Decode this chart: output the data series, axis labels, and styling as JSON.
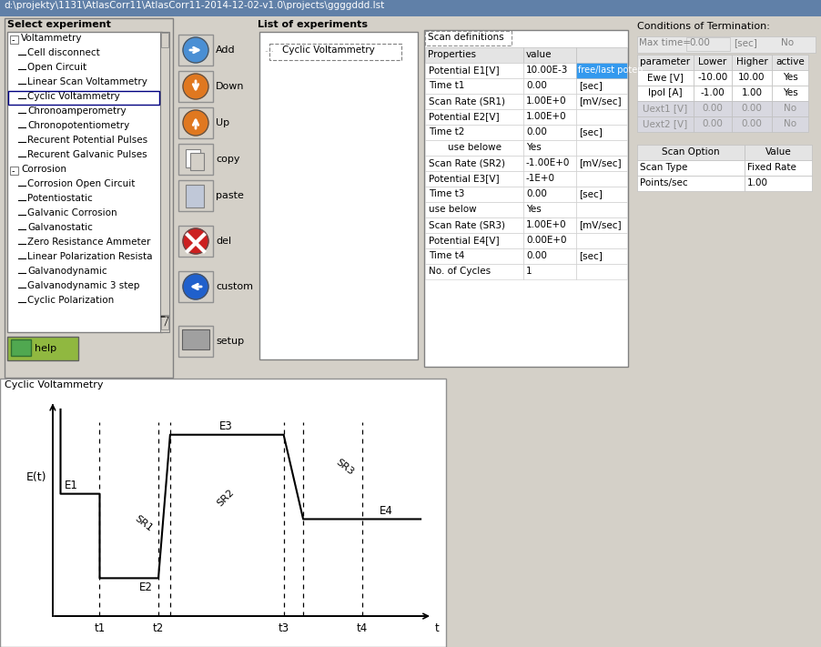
{
  "title_bar": "d:\\projekty\\1131\\AtlasCorr11\\AtlasCorr11-2014-12-02-v1.0\\projects\\ggggddd.lst",
  "bg_color": "#d4d0c8",
  "select_exp_title": "Select experiment",
  "tree_items": [
    {
      "label": "Voltammetry",
      "level": 0,
      "expanded": true
    },
    {
      "label": "Cell disconnect",
      "level": 1
    },
    {
      "label": "Open Circuit",
      "level": 1
    },
    {
      "label": "Linear Scan Voltammetry",
      "level": 1
    },
    {
      "label": "Cyclic Voltammetry",
      "level": 1,
      "selected": true
    },
    {
      "label": "Chronoamperometry",
      "level": 1
    },
    {
      "label": "Chronopotentiometry",
      "level": 1
    },
    {
      "label": "Recurent Potential Pulses",
      "level": 1
    },
    {
      "label": "Recurent Galvanic Pulses",
      "level": 1
    },
    {
      "label": "Corrosion",
      "level": 0,
      "expanded": true
    },
    {
      "label": "Corrosion Open Circuit",
      "level": 1
    },
    {
      "label": "Potentiostatic",
      "level": 1
    },
    {
      "label": "Galvanic Corrosion",
      "level": 1
    },
    {
      "label": "Galvanostatic",
      "level": 1
    },
    {
      "label": "Zero Resistance Ammeter",
      "level": 1
    },
    {
      "label": "Linear Polarization Resista",
      "level": 1
    },
    {
      "label": "Galvanodynamic",
      "level": 1
    },
    {
      "label": "Galvanodynamic 3 step",
      "level": 1
    },
    {
      "label": "Cyclic Polarization",
      "level": 1
    }
  ],
  "list_exp_title": "List of experiments",
  "list_exp_item": "Cyclic Voltammetry",
  "scan_def_title": "Scan definitions",
  "scan_properties": [
    {
      "prop": "Properties",
      "val": "value",
      "unit": "",
      "header": true
    },
    {
      "prop": "Potential E1[V]",
      "val": "10.00E-3",
      "unit": "free/last poten",
      "highlight": true
    },
    {
      "prop": "Time t1",
      "val": "0.00",
      "unit": "[sec]"
    },
    {
      "prop": "Scan Rate (SR1)",
      "val": "1.00E+0",
      "unit": "[mV/sec]"
    },
    {
      "prop": "Potential E2[V]",
      "val": "1.00E+0",
      "unit": ""
    },
    {
      "prop": "Time t2",
      "val": "0.00",
      "unit": "[sec]"
    },
    {
      "prop": "use belowe",
      "val": "Yes",
      "unit": "",
      "indent": true
    },
    {
      "prop": "Scan Rate (SR2)",
      "val": "-1.00E+0",
      "unit": "[mV/sec]"
    },
    {
      "prop": "Potential E3[V]",
      "val": "-1E+0",
      "unit": ""
    },
    {
      "prop": "Time t3",
      "val": "0.00",
      "unit": "[sec]"
    },
    {
      "prop": "use below",
      "val": "Yes",
      "unit": ""
    },
    {
      "prop": "Scan Rate (SR3)",
      "val": "1.00E+0",
      "unit": "[mV/sec]"
    },
    {
      "prop": "Potential E4[V]",
      "val": "0.00E+0",
      "unit": ""
    },
    {
      "prop": "Time t4",
      "val": "0.00",
      "unit": "[sec]"
    },
    {
      "prop": "No. of Cycles",
      "val": "1",
      "unit": ""
    }
  ],
  "conditions_title": "Conditions of Termination:",
  "max_time_label": "Max time=",
  "max_time_val": "0.00",
  "max_time_unit": "[sec]",
  "max_time_active": "No",
  "param_headers": [
    "parameter",
    "Lower",
    "Higher",
    "active"
  ],
  "param_rows": [
    [
      "Ewe [V]",
      "-10.00",
      "10.00",
      "Yes"
    ],
    [
      "Ipol [A]",
      "-1.00",
      "1.00",
      "Yes"
    ],
    [
      "Uext1 [V]",
      "0.00",
      "0.00",
      "No"
    ],
    [
      "Uext2 [V]",
      "0.00",
      "0.00",
      "No"
    ]
  ],
  "scan_option_headers": [
    "Scan Option",
    "Value"
  ],
  "scan_option_rows": [
    [
      "Scan Type",
      "Fixed Rate"
    ],
    [
      "Points/sec",
      "1.00"
    ]
  ],
  "bottom_title": "Cyclic Voltammetry",
  "waveform": {
    "ylabel": "E(t)",
    "xlabel": "t",
    "E1": "E1",
    "E2": "E2",
    "E3": "E3",
    "E4": "E4",
    "SR1": "SR1",
    "SR2": "SR2",
    "SR3": "SR3",
    "t1": "t1",
    "t2": "t2",
    "t3": "t3",
    "t4": "t4",
    "t0x": 0.5,
    "t1x": 1.5,
    "t2x": 3.0,
    "t2bx": 3.3,
    "t3x": 6.2,
    "t3bx": 6.7,
    "t4x": 8.2,
    "t4bx": 8.5,
    "tendx": 9.7,
    "E1y": 3.2,
    "E2y": 1.2,
    "E3y": 4.6,
    "E4y": 2.6
  },
  "help_label": "help",
  "setup_label": "setup",
  "button_y": [
    38,
    78,
    118,
    158,
    198,
    248,
    298
  ],
  "button_labels": [
    "Add",
    "Down",
    "Up",
    "copy",
    "paste",
    "del",
    "custom"
  ],
  "button_colors": [
    "#4a8fd4",
    "#e07820",
    "#e07820",
    "#d4d0c8",
    "#d4d0c8",
    "#cc2020",
    "#2060cc"
  ]
}
